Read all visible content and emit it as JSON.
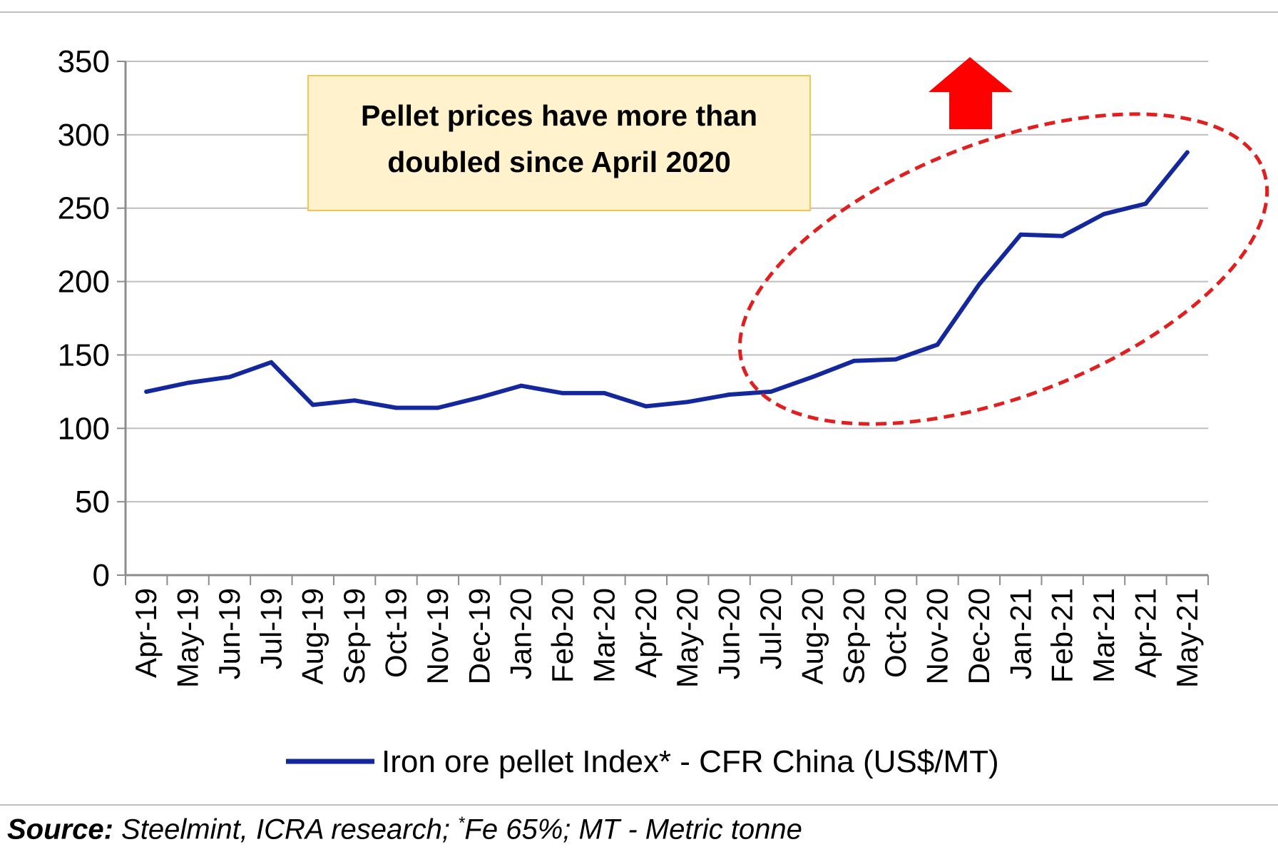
{
  "chart_data": {
    "type": "line",
    "title": "",
    "xlabel": "",
    "ylabel": "",
    "ylim": [
      0,
      350
    ],
    "yticks": [
      0,
      50,
      100,
      150,
      200,
      250,
      300,
      350
    ],
    "grid": true,
    "categories": [
      "Apr-19",
      "May-19",
      "Jun-19",
      "Jul-19",
      "Aug-19",
      "Sep-19",
      "Oct-19",
      "Nov-19",
      "Dec-19",
      "Jan-20",
      "Feb-20",
      "Mar-20",
      "Apr-20",
      "May-20",
      "Jun-20",
      "Jul-20",
      "Aug-20",
      "Sep-20",
      "Oct-20",
      "Nov-20",
      "Dec-20",
      "Jan-21",
      "Feb-21",
      "Mar-21",
      "Apr-21",
      "May-21"
    ],
    "series": [
      {
        "name": "Iron ore pellet Index* - CFR China (US$/MT)",
        "color": "#14289c",
        "values": [
          125,
          131,
          135,
          145,
          116,
          119,
          114,
          114,
          121,
          129,
          124,
          124,
          115,
          118,
          123,
          125,
          135,
          146,
          147,
          157,
          198,
          232,
          231,
          246,
          253,
          288
        ]
      }
    ],
    "annotations": {
      "callout_line1": "Pellet prices have more than",
      "callout_line2": "doubled since April 2020",
      "callout_fill": "#fff2cc",
      "callout_border": "#f0c850",
      "highlight_color": "#e02020",
      "arrow_color": "#ff0000"
    },
    "legend_position": "bottom"
  },
  "footer": {
    "source_label": "Source:",
    "source_text": " Steelmint, ICRA research; ",
    "footnote_mark": "*",
    "footnote_text": "Fe 65%; MT - Metric tonne"
  }
}
